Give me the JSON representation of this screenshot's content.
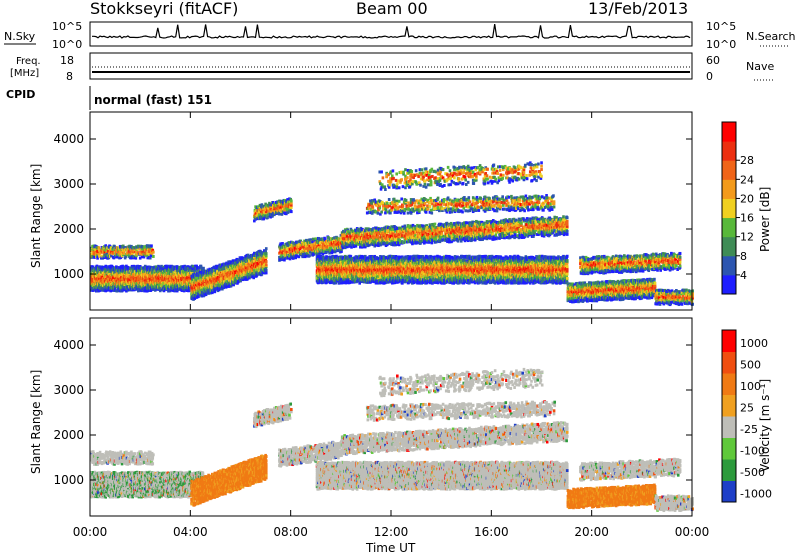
{
  "header": {
    "station": "Stokkseyri (fitACF)",
    "beam": "Beam 00",
    "date": "13/Feb/2013"
  },
  "noise_panel": {
    "left_label": "N.Sky",
    "right_label": "N.Search",
    "ytick_top": "10^5",
    "ytick_bottom": "10^0"
  },
  "freq_panel": {
    "left_label_line1": "Freq.",
    "left_label_line2": "[MHz]",
    "right_label": "Nave",
    "left_ticks": [
      "18",
      "8"
    ],
    "right_ticks": [
      "60",
      "0"
    ]
  },
  "cpid": {
    "label": "CPID",
    "value": "normal (fast) 151"
  },
  "chart_data": [
    {
      "type": "heatmap",
      "name": "Power",
      "xlabel": "Time UT",
      "ylabel": "Slant Range [km]",
      "yticks": [
        "1000",
        "2000",
        "3000",
        "4000"
      ],
      "ylim": [
        200,
        4600
      ],
      "xlim": [
        "00:00",
        "24:00"
      ],
      "colorbar_label": "Power [dB]",
      "colorbar_ticks": [
        "4",
        "8",
        "12",
        "16",
        "20",
        "24",
        "28"
      ],
      "colorbar_colors": [
        "#1e1eff",
        "#2c55b0",
        "#3f8c56",
        "#58b83a",
        "#f0d020",
        "#f39a1b",
        "#f06418",
        "#ec2f10",
        "#ff0000"
      ]
    },
    {
      "type": "heatmap",
      "name": "Velocity",
      "xlabel": "Time UT",
      "ylabel": "Slant Range [km]",
      "yticks": [
        "1000",
        "2000",
        "3000",
        "4000"
      ],
      "ylim": [
        200,
        4600
      ],
      "xlim": [
        "00:00",
        "24:00"
      ],
      "colorbar_label": "Velocity [m s⁻¹]",
      "colorbar_ticks": [
        "1000",
        "500",
        "100",
        "25",
        "-25",
        "-100",
        "-500",
        "-1000"
      ],
      "colorbar_colors": [
        "#1e3fc8",
        "#2c9a3c",
        "#5fc83a",
        "#bebeb8",
        "#f0a020",
        "#f07a14",
        "#f04e10",
        "#ff0000"
      ]
    }
  ],
  "xaxis": {
    "ticks": [
      "00:00",
      "04:00",
      "08:00",
      "12:00",
      "16:00",
      "20:00",
      "00:00"
    ],
    "label": "Time UT"
  }
}
